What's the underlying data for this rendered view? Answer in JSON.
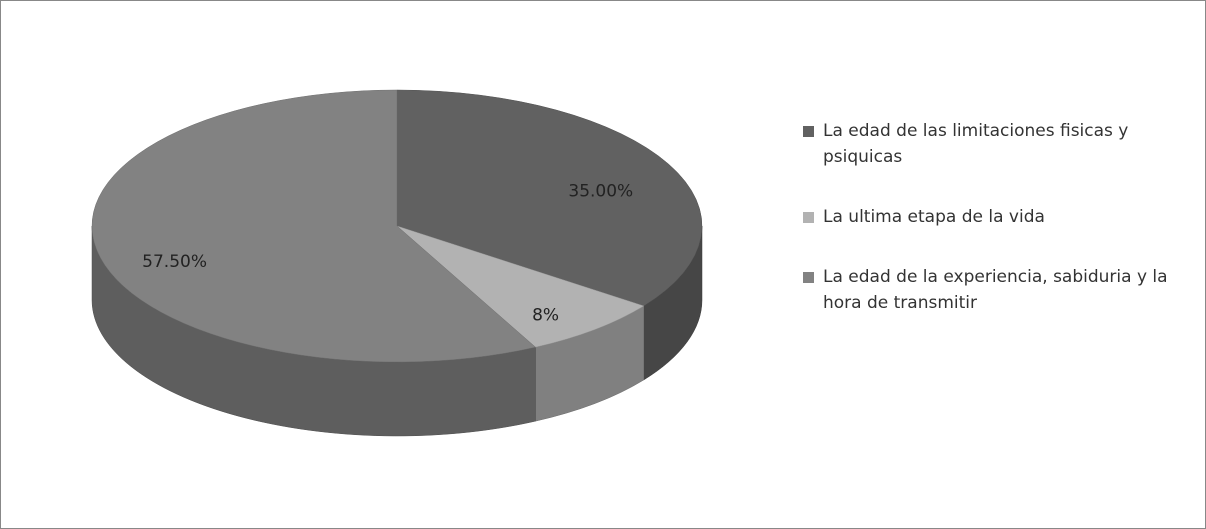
{
  "chart_data": {
    "type": "pie",
    "categories": [
      "La edad de las limitaciones fisicas y psiquicas",
      "La ultima etapa de la vida",
      "La edad de la experiencia, sabiduria y la hora de transmitir"
    ],
    "values": [
      35,
      7.5,
      57.5
    ],
    "value_labels": [
      "35.00%",
      "8%",
      "57.50%"
    ],
    "colors": [
      "#616161",
      "#b2b2b2",
      "#828282"
    ],
    "legend": "right"
  }
}
